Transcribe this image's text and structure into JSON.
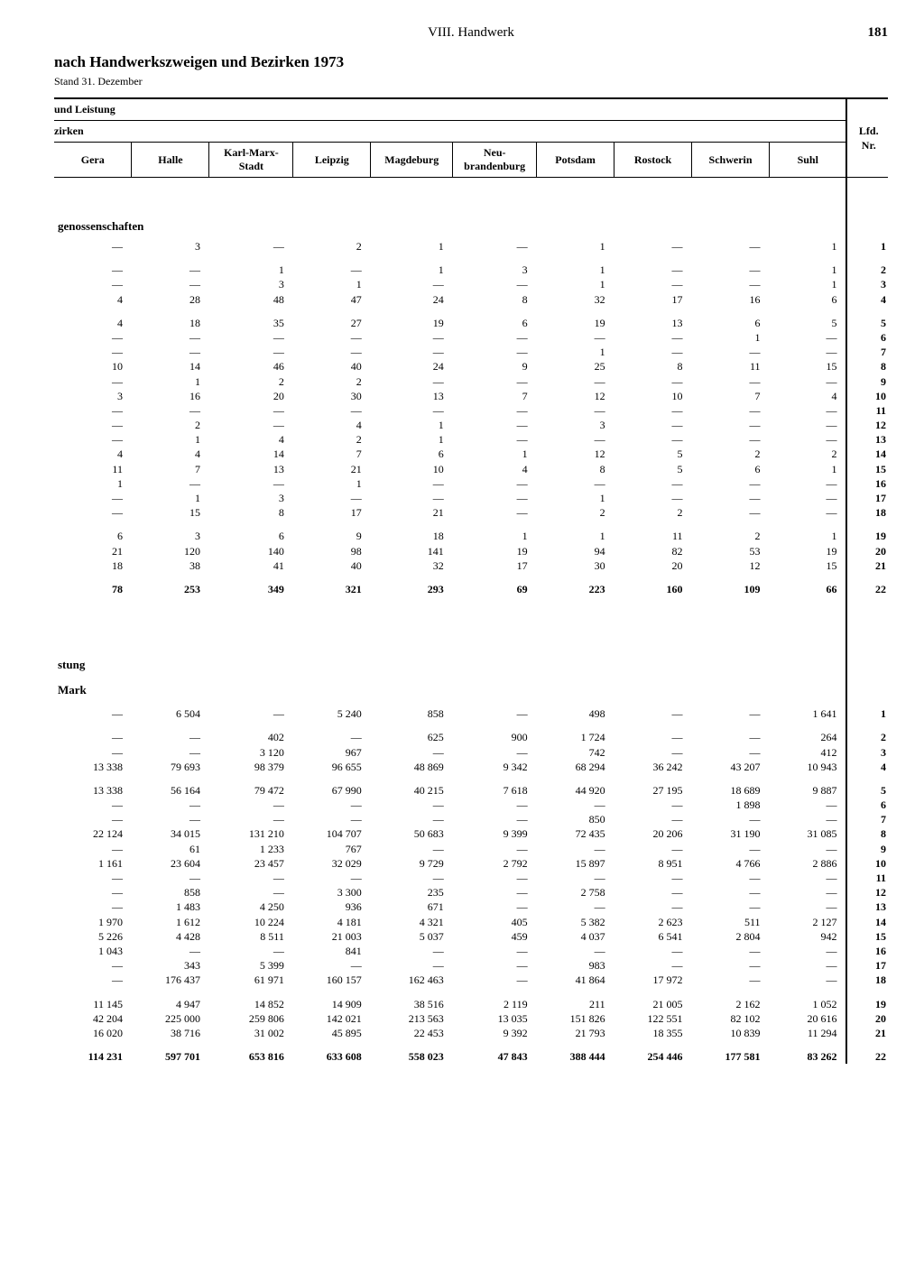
{
  "chapter": "VIII. Handwerk",
  "page_number": "181",
  "title": "nach Handwerkszweigen und Bezirken 1973",
  "subtitle": "Stand 31. Dezember",
  "header_line1": "und Leistung",
  "header_line2": "zirken",
  "lfd_label": "Lfd.\nNr.",
  "columns": [
    "Gera",
    "Halle",
    "Karl-Marx-\nStadt",
    "Leipzig",
    "Magdeburg",
    "Neu-\nbrandenburg",
    "Potsdam",
    "Rostock",
    "Schwerin",
    "Suhl"
  ],
  "section1_label": "genossenschaften",
  "section2_label": "stung",
  "section2_unit": "Mark",
  "groups1": [
    [
      [
        "—",
        "3",
        "—",
        "2",
        "1",
        "—",
        "1",
        "—",
        "—",
        "1",
        "1"
      ]
    ],
    [
      [
        "—",
        "—",
        "1",
        "—",
        "1",
        "3",
        "1",
        "—",
        "—",
        "1",
        "2"
      ],
      [
        "—",
        "—",
        "3",
        "1",
        "—",
        "—",
        "1",
        "—",
        "—",
        "1",
        "3"
      ],
      [
        "4",
        "28",
        "48",
        "47",
        "24",
        "8",
        "32",
        "17",
        "16",
        "6",
        "4"
      ]
    ],
    [
      [
        "4",
        "18",
        "35",
        "27",
        "19",
        "6",
        "19",
        "13",
        "6",
        "5",
        "5"
      ],
      [
        "—",
        "—",
        "—",
        "—",
        "—",
        "—",
        "—",
        "—",
        "1",
        "—",
        "6"
      ],
      [
        "—",
        "—",
        "—",
        "—",
        "—",
        "—",
        "1",
        "—",
        "—",
        "—",
        "7"
      ],
      [
        "10",
        "14",
        "46",
        "40",
        "24",
        "9",
        "25",
        "8",
        "11",
        "15",
        "8"
      ],
      [
        "—",
        "1",
        "2",
        "2",
        "—",
        "—",
        "—",
        "—",
        "—",
        "—",
        "9"
      ],
      [
        "3",
        "16",
        "20",
        "30",
        "13",
        "7",
        "12",
        "10",
        "7",
        "4",
        "10"
      ],
      [
        "—",
        "—",
        "—",
        "—",
        "—",
        "—",
        "—",
        "—",
        "—",
        "—",
        "11"
      ],
      [
        "—",
        "2",
        "—",
        "4",
        "1",
        "—",
        "3",
        "—",
        "—",
        "—",
        "12"
      ],
      [
        "—",
        "1",
        "4",
        "2",
        "1",
        "—",
        "—",
        "—",
        "—",
        "—",
        "13"
      ],
      [
        "4",
        "4",
        "14",
        "7",
        "6",
        "1",
        "12",
        "5",
        "2",
        "2",
        "14"
      ],
      [
        "11",
        "7",
        "13",
        "21",
        "10",
        "4",
        "8",
        "5",
        "6",
        "1",
        "15"
      ],
      [
        "1",
        "—",
        "—",
        "1",
        "—",
        "—",
        "—",
        "—",
        "—",
        "—",
        "16"
      ],
      [
        "—",
        "1",
        "3",
        "—",
        "—",
        "—",
        "1",
        "—",
        "—",
        "—",
        "17"
      ],
      [
        "—",
        "15",
        "8",
        "17",
        "21",
        "—",
        "2",
        "2",
        "—",
        "—",
        "18"
      ]
    ],
    [
      [
        "6",
        "3",
        "6",
        "9",
        "18",
        "1",
        "1",
        "11",
        "2",
        "1",
        "19"
      ],
      [
        "21",
        "120",
        "140",
        "98",
        "141",
        "19",
        "94",
        "82",
        "53",
        "19",
        "20"
      ],
      [
        "18",
        "38",
        "41",
        "40",
        "32",
        "17",
        "30",
        "20",
        "12",
        "15",
        "21"
      ]
    ],
    [
      [
        "78",
        "253",
        "349",
        "321",
        "293",
        "69",
        "223",
        "160",
        "109",
        "66",
        "22"
      ]
    ]
  ],
  "groups2": [
    [
      [
        "—",
        "6 504",
        "—",
        "5 240",
        "858",
        "—",
        "498",
        "—",
        "—",
        "1 641",
        "1"
      ]
    ],
    [
      [
        "—",
        "—",
        "402",
        "—",
        "625",
        "900",
        "1 724",
        "—",
        "—",
        "264",
        "2"
      ],
      [
        "—",
        "—",
        "3 120",
        "967",
        "—",
        "—",
        "742",
        "—",
        "—",
        "412",
        "3"
      ],
      [
        "13 338",
        "79 693",
        "98 379",
        "96 655",
        "48 869",
        "9 342",
        "68 294",
        "36 242",
        "43 207",
        "10 943",
        "4"
      ]
    ],
    [
      [
        "13 338",
        "56 164",
        "79 472",
        "67 990",
        "40 215",
        "7 618",
        "44 920",
        "27 195",
        "18 689",
        "9 887",
        "5"
      ],
      [
        "—",
        "—",
        "—",
        "—",
        "—",
        "—",
        "—",
        "—",
        "1 898",
        "—",
        "6"
      ],
      [
        "—",
        "—",
        "—",
        "—",
        "—",
        "—",
        "850",
        "—",
        "—",
        "—",
        "7"
      ],
      [
        "22 124",
        "34 015",
        "131 210",
        "104 707",
        "50 683",
        "9 399",
        "72 435",
        "20 206",
        "31 190",
        "31 085",
        "8"
      ],
      [
        "—",
        "61",
        "1 233",
        "767",
        "—",
        "—",
        "—",
        "—",
        "—",
        "—",
        "9"
      ],
      [
        "1 161",
        "23 604",
        "23 457",
        "32 029",
        "9 729",
        "2 792",
        "15 897",
        "8 951",
        "4 766",
        "2 886",
        "10"
      ],
      [
        "—",
        "—",
        "—",
        "—",
        "—",
        "—",
        "—",
        "—",
        "—",
        "—",
        "11"
      ],
      [
        "—",
        "858",
        "—",
        "3 300",
        "235",
        "—",
        "2 758",
        "—",
        "—",
        "—",
        "12"
      ],
      [
        "—",
        "1 483",
        "4 250",
        "936",
        "671",
        "—",
        "—",
        "—",
        "—",
        "—",
        "13"
      ],
      [
        "1 970",
        "1 612",
        "10 224",
        "4 181",
        "4 321",
        "405",
        "5 382",
        "2 623",
        "511",
        "2 127",
        "14"
      ],
      [
        "5 226",
        "4 428",
        "8 511",
        "21 003",
        "5 037",
        "459",
        "4 037",
        "6 541",
        "2 804",
        "942",
        "15"
      ],
      [
        "1 043",
        "—",
        "—",
        "841",
        "—",
        "—",
        "—",
        "—",
        "—",
        "—",
        "16"
      ],
      [
        "—",
        "343",
        "5 399",
        "—",
        "—",
        "—",
        "983",
        "—",
        "—",
        "—",
        "17"
      ],
      [
        "—",
        "176 437",
        "61 971",
        "160 157",
        "162 463",
        "—",
        "41 864",
        "17 972",
        "—",
        "—",
        "18"
      ]
    ],
    [
      [
        "11 145",
        "4 947",
        "14 852",
        "14 909",
        "38 516",
        "2 119",
        "211",
        "21 005",
        "2 162",
        "1 052",
        "19"
      ],
      [
        "42 204",
        "225 000",
        "259 806",
        "142 021",
        "213 563",
        "13 035",
        "151 826",
        "122 551",
        "82 102",
        "20 616",
        "20"
      ],
      [
        "16 020",
        "38 716",
        "31 002",
        "45 895",
        "22 453",
        "9 392",
        "21 793",
        "18 355",
        "10 839",
        "11 294",
        "21"
      ]
    ],
    [
      [
        "114 231",
        "597 701",
        "653 816",
        "633 608",
        "558 023",
        "47 843",
        "388 444",
        "254 446",
        "177 581",
        "83 262",
        "22"
      ]
    ]
  ]
}
